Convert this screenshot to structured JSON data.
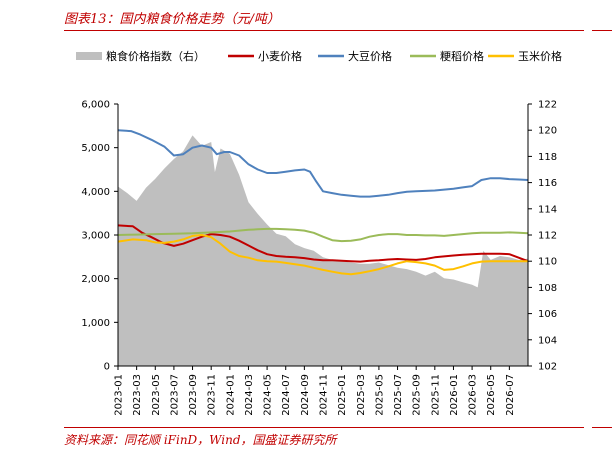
{
  "title": "图表13：国内粮食价格走势（元/吨）",
  "source": "资料来源：同花顺 iFinD，Wind，国盛证券研究所",
  "chart_data": {
    "type": "line",
    "legend_position": "top",
    "legend": [
      "粮食价格指数（右）",
      "小麦价格",
      "大豆价格",
      "粳稻价格",
      "玉米价格"
    ],
    "left_axis": {
      "range": [
        0,
        6000
      ],
      "ticks": [
        "0",
        "1,000",
        "2,000",
        "3,000",
        "4,000",
        "5,000",
        "6,000"
      ]
    },
    "right_axis": {
      "range": [
        102,
        122
      ],
      "ticks": [
        "102",
        "104",
        "106",
        "108",
        "110",
        "112",
        "114",
        "116",
        "118",
        "120",
        "122"
      ]
    },
    "x_ticks": [
      "2023-01",
      "2023-03",
      "2023-05",
      "2023-07",
      "2023-09",
      "2023-11",
      "2024-01",
      "2024-03",
      "2024-05",
      "2024-07",
      "2024-09",
      "2024-11",
      "2025-01",
      "2025-03",
      "2025-05",
      "2025-07",
      "2025-09",
      "2025-11",
      "2026-01",
      "2026-03",
      "2026-05",
      "2026-07"
    ],
    "x_range": [
      0,
      22
    ],
    "series": [
      {
        "name": "粮食价格指数（右）",
        "type": "area",
        "axis": "right",
        "color": "#bfbfbf",
        "x": [
          0,
          0.5,
          1,
          1.5,
          2,
          2.5,
          3,
          3.5,
          4,
          4.5,
          5,
          5.2,
          5.5,
          6,
          6.5,
          7,
          7.5,
          8,
          8.5,
          9,
          9.5,
          10,
          10.5,
          11,
          11.5,
          12,
          12.5,
          13,
          13.5,
          14,
          14.5,
          15,
          15.5,
          16,
          16.5,
          17,
          17.5,
          18,
          18.5,
          19,
          19.3,
          19.6,
          20,
          20.5,
          21,
          21.5,
          22
        ],
        "values": [
          115.7,
          115.2,
          114.6,
          115.6,
          116.3,
          117.1,
          117.8,
          118.4,
          119.6,
          118.8,
          119.1,
          116.8,
          118.6,
          118.2,
          116.6,
          114.5,
          113.6,
          112.8,
          112.1,
          111.9,
          111.3,
          111.0,
          110.8,
          110.3,
          110.1,
          110.0,
          109.9,
          109.8,
          109.8,
          109.9,
          109.7,
          109.5,
          109.4,
          109.2,
          108.9,
          109.2,
          108.7,
          108.6,
          108.4,
          108.2,
          108.0,
          110.8,
          110.1,
          110.4,
          110.3,
          110.1,
          110.2
        ]
      },
      {
        "name": "小麦价格",
        "type": "line",
        "axis": "left",
        "color": "#c00000",
        "x": [
          0,
          0.8,
          1.3,
          1.8,
          2.4,
          3,
          3.5,
          4,
          4.5,
          5,
          5.5,
          6,
          6.5,
          7,
          7.5,
          8,
          8.5,
          9,
          9.5,
          10,
          10.5,
          11,
          11.5,
          12,
          12.5,
          13,
          13.5,
          14,
          14.5,
          15,
          15.5,
          16,
          16.5,
          17,
          17.5,
          18,
          18.5,
          19,
          19.5,
          20,
          20.5,
          21,
          21.5,
          22
        ],
        "values": [
          3220,
          3200,
          3050,
          2950,
          2820,
          2750,
          2800,
          2880,
          2960,
          3020,
          3000,
          2960,
          2870,
          2760,
          2650,
          2560,
          2520,
          2500,
          2490,
          2470,
          2440,
          2420,
          2420,
          2410,
          2400,
          2390,
          2410,
          2420,
          2440,
          2450,
          2440,
          2430,
          2450,
          2490,
          2510,
          2530,
          2550,
          2560,
          2570,
          2570,
          2570,
          2560,
          2480,
          2400
        ]
      },
      {
        "name": "大豆价格",
        "type": "line",
        "axis": "left",
        "color": "#4f81bd",
        "x": [
          0,
          0.7,
          1.2,
          1.8,
          2.5,
          3,
          3.5,
          4,
          4.5,
          5,
          5.3,
          5.7,
          6,
          6.5,
          7,
          7.5,
          8,
          8.5,
          9,
          9.5,
          10,
          10.3,
          10.6,
          11,
          11.5,
          12,
          12.5,
          13,
          13.5,
          14,
          14.5,
          15,
          15.5,
          16,
          16.5,
          17,
          17.5,
          18,
          18.5,
          19,
          19.5,
          20,
          20.5,
          21,
          21.5,
          22
        ],
        "values": [
          5400,
          5380,
          5300,
          5180,
          5020,
          4820,
          4850,
          5000,
          5050,
          5000,
          4850,
          4900,
          4900,
          4820,
          4620,
          4500,
          4420,
          4420,
          4450,
          4480,
          4500,
          4450,
          4250,
          4000,
          3960,
          3920,
          3900,
          3880,
          3880,
          3900,
          3920,
          3960,
          3990,
          4000,
          4010,
          4020,
          4040,
          4060,
          4090,
          4120,
          4260,
          4300,
          4300,
          4280,
          4270,
          4260
        ]
      },
      {
        "name": "粳稻价格",
        "type": "line",
        "axis": "left",
        "color": "#9bbb59",
        "x": [
          0,
          1,
          2,
          3,
          4,
          5,
          6,
          6.5,
          7,
          7.5,
          8,
          8.5,
          9,
          9.5,
          10,
          10.5,
          11,
          11.5,
          12,
          12.5,
          13,
          13.5,
          14,
          14.5,
          15,
          15.5,
          16,
          16.5,
          17,
          17.5,
          18,
          18.5,
          19,
          19.5,
          20,
          20.5,
          21,
          21.5,
          22
        ],
        "values": [
          3000,
          3010,
          3020,
          3030,
          3040,
          3060,
          3080,
          3100,
          3120,
          3130,
          3140,
          3140,
          3130,
          3120,
          3100,
          3050,
          2960,
          2880,
          2860,
          2870,
          2900,
          2960,
          3000,
          3020,
          3020,
          3000,
          3000,
          2990,
          2990,
          2980,
          3000,
          3020,
          3040,
          3050,
          3050,
          3050,
          3060,
          3050,
          3040
        ]
      },
      {
        "name": "玉米价格",
        "type": "line",
        "axis": "left",
        "color": "#ffc000",
        "x": [
          0,
          0.8,
          1.5,
          2,
          2.5,
          3,
          3.5,
          4,
          4.5,
          5,
          5.5,
          6,
          6.5,
          7,
          7.5,
          8,
          8.5,
          9,
          9.5,
          10,
          10.5,
          11,
          11.5,
          12,
          12.5,
          13,
          13.5,
          14,
          14.5,
          15,
          15.5,
          16,
          16.5,
          17,
          17.5,
          18,
          18.5,
          19,
          19.5,
          20,
          20.5,
          21,
          21.5,
          22
        ],
        "values": [
          2850,
          2900,
          2880,
          2830,
          2820,
          2850,
          2900,
          2980,
          3000,
          2950,
          2800,
          2620,
          2520,
          2480,
          2420,
          2400,
          2390,
          2360,
          2330,
          2300,
          2250,
          2200,
          2160,
          2120,
          2100,
          2130,
          2170,
          2220,
          2280,
          2350,
          2400,
          2380,
          2350,
          2300,
          2200,
          2220,
          2280,
          2350,
          2390,
          2400,
          2400,
          2400,
          2400,
          2400
        ]
      }
    ]
  }
}
